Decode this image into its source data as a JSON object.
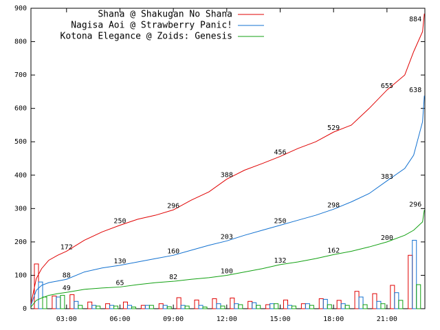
{
  "chart_data": {
    "type": "line",
    "x": [
      1,
      1.3,
      1.6,
      2,
      2.5,
      3,
      4,
      5,
      6,
      7,
      8,
      9,
      10,
      11,
      12,
      13,
      14,
      15,
      16,
      17,
      18,
      19,
      20,
      21,
      22,
      22.5,
      23,
      23.1
    ],
    "series": [
      {
        "name": "Shana @ Shakugan No Shana",
        "color": "#e00000",
        "values": [
          15,
          90,
          120,
          145,
          160,
          172,
          205,
          230,
          250,
          268,
          280,
          296,
          325,
          350,
          388,
          415,
          435,
          456,
          480,
          500,
          529,
          550,
          600,
          655,
          700,
          770,
          830,
          884
        ],
        "bar_values": [
          134,
          38,
          42,
          20,
          15,
          20,
          10,
          15,
          33,
          26,
          30,
          32,
          22,
          12,
          26,
          15,
          30,
          25,
          52,
          45,
          70,
          160
        ]
      },
      {
        "name": "Nagisa Aoi @ Strawberry Panic!",
        "color": "#1070d0",
        "values": [
          10,
          55,
          70,
          78,
          83,
          88,
          110,
          122,
          130,
          140,
          150,
          160,
          175,
          190,
          203,
          220,
          235,
          250,
          265,
          280,
          298,
          320,
          345,
          383,
          420,
          460,
          560,
          638
        ],
        "bar_values": [
          80,
          35,
          22,
          10,
          10,
          10,
          10,
          10,
          10,
          10,
          15,
          15,
          18,
          15,
          10,
          15,
          28,
          15,
          35,
          22,
          48,
          205
        ]
      },
      {
        "name": "Kotona Elegance @ Zoids: Genesis",
        "color": "#10a010",
        "values": [
          5,
          25,
          32,
          40,
          45,
          49,
          58,
          62,
          65,
          72,
          78,
          82,
          88,
          93,
          100,
          110,
          120,
          132,
          140,
          150,
          162,
          172,
          185,
          200,
          220,
          235,
          260,
          296
        ],
        "bar_values": [
          35,
          40,
          10,
          8,
          8,
          5,
          10,
          6,
          8,
          5,
          8,
          12,
          10,
          15,
          8,
          10,
          12,
          10,
          12,
          15,
          25,
          72
        ]
      }
    ],
    "bar_x": [
      1,
      2,
      3,
      4,
      5,
      6,
      7,
      8,
      9,
      10,
      11,
      12,
      13,
      14,
      15,
      16,
      17,
      18,
      19,
      20,
      21,
      22
    ],
    "xlim": [
      1,
      23.13
    ],
    "xticks": [
      {
        "value": 3,
        "label": "03:00"
      },
      {
        "value": 6,
        "label": "06:00"
      },
      {
        "value": 9,
        "label": "09:00"
      },
      {
        "value": 12,
        "label": "12:00"
      },
      {
        "value": 15,
        "label": "15:00"
      },
      {
        "value": 18,
        "label": "18:00"
      },
      {
        "value": 21,
        "label": "21:00"
      }
    ],
    "ylim": [
      0,
      900
    ],
    "yticks": [
      0,
      100,
      200,
      300,
      400,
      500,
      600,
      700,
      800,
      900
    ],
    "legend": "top-right"
  }
}
